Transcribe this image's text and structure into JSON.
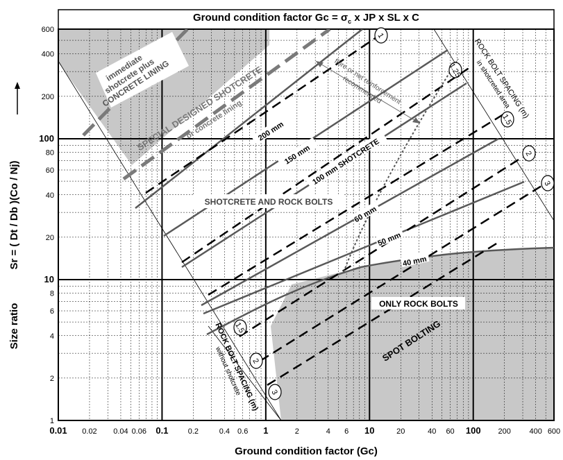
{
  "diagram": {
    "title": "Ground condition factor    Gc = σ",
    "title_sub": "c",
    "title_rest": " x JP  x SL x C",
    "xlabel": "Ground condition factor  (Gc)",
    "ylabel_left": "Size ratio",
    "ylabel_formula": "Sr = ( Dt / Db )(Co / Nj)",
    "x_ticks": [
      "0.01",
      "0.02",
      "0.04",
      "0.06",
      "0.1",
      "0.2",
      "0.4",
      "0.6",
      "1",
      "2",
      "4",
      "6",
      "10",
      "20",
      "40",
      "60",
      "100",
      "200",
      "400",
      "600"
    ],
    "y_ticks": [
      "1",
      "2",
      "4",
      "6",
      "8",
      "10",
      "20",
      "40",
      "60",
      "80",
      "100",
      "200",
      "400",
      "600"
    ],
    "regions": {
      "concrete": "immediate\nshotcrete plus\nCONCRETE LINING",
      "special_1": "SPECIAL DESIGNED SHOTCRETE",
      "special_2": "or concrete lining",
      "fibre_1": "fibre or net reinforcement",
      "fibre_2": "recommended",
      "shotcrete_bolts": "SHOTCRETE  AND  ROCK BOLTS",
      "only_bolts": "ONLY ROCK BOLTS",
      "spot": "SPOT BOLTING",
      "spacing_shot_1": "ROCK BOLT SPACING (m)",
      "spacing_shot_2": "in shotcreted area",
      "spacing_no_1": "ROCK BOLT SPACING  (m)",
      "spacing_no_2": "without shotcrete"
    },
    "thickness_labels": [
      "200 mm",
      "150 mm",
      "100 mm SHOTCRETE",
      "60 mm",
      "50 mm",
      "40 mm"
    ],
    "spacing_shotcrete": [
      "1",
      "1.25",
      "1.5",
      "2",
      "3"
    ],
    "spacing_no_shotcrete": [
      "1.5",
      "2",
      "3"
    ],
    "colors": {
      "shade": "#c8c8c8",
      "solid": "#595959",
      "dashed": "#000000",
      "grid": "#000000"
    }
  }
}
